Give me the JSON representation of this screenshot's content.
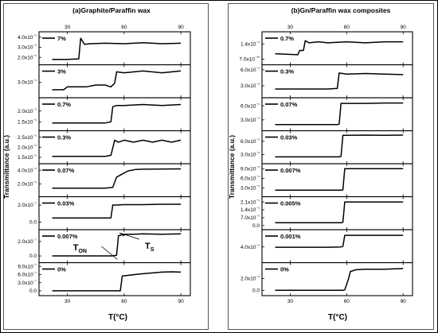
{
  "chart_data": [
    {
      "type": "line",
      "title": "(a)Graphite/Paraffin wax",
      "xlabel": "T(°C)",
      "ylabel": "Transmittance (a.u.)",
      "x_ticks": [
        "30",
        "60",
        "90"
      ],
      "xlim": [
        15,
        95
      ],
      "panels": [
        {
          "label": "7%",
          "y_ticks": [
            "4.0x10⁻⁶",
            "3.0x10⁻⁶",
            "2.0x10⁻⁶"
          ],
          "y_tick_values": [
            4.0,
            3.0,
            2.0
          ],
          "ylim": [
            1.5,
            4.3
          ],
          "x": [
            22,
            30,
            36,
            37,
            39,
            42,
            50,
            60,
            70,
            80,
            90
          ],
          "y": [
            1.8,
            1.8,
            1.85,
            3.9,
            3.3,
            3.35,
            3.4,
            3.35,
            3.45,
            3.35,
            3.4
          ]
        },
        {
          "label": "3%",
          "y_ticks": [
            "3.0x10⁻⁶"
          ],
          "y_tick_values": [
            3.0
          ],
          "ylim": [
            2.3,
            3.8
          ],
          "x": [
            22,
            28,
            30,
            40,
            45,
            50,
            53,
            55,
            56,
            60,
            70,
            80,
            90
          ],
          "y": [
            2.6,
            2.6,
            2.75,
            2.75,
            2.85,
            2.85,
            2.75,
            2.95,
            3.55,
            3.5,
            3.6,
            3.5,
            3.6
          ]
        },
        {
          "label": "0.7%",
          "y_ticks": [
            "2.0x10⁻⁶",
            "1.5x10⁻⁶"
          ],
          "y_tick_values": [
            2.0,
            1.5
          ],
          "ylim": [
            1.2,
            2.5
          ],
          "x": [
            22,
            50,
            53,
            54,
            56,
            60,
            70,
            80,
            90
          ],
          "y": [
            1.45,
            1.45,
            1.5,
            2.2,
            2.25,
            2.25,
            2.3,
            2.25,
            2.3
          ]
        },
        {
          "label": "0.3%",
          "y_ticks": [
            "2.5x10⁻⁶",
            "2.0x10⁻⁶",
            "1.5x10⁻⁶"
          ],
          "y_tick_values": [
            2.5,
            2.0,
            1.5
          ],
          "ylim": [
            1.3,
            2.7
          ],
          "x": [
            22,
            50,
            53,
            55,
            57,
            60,
            65,
            70,
            75,
            80,
            85,
            90
          ],
          "y": [
            1.55,
            1.55,
            1.6,
            2.35,
            2.25,
            2.35,
            2.25,
            2.35,
            2.25,
            2.35,
            2.25,
            2.35
          ]
        },
        {
          "label": "0.07%",
          "y_ticks": [
            "4.0x10⁻⁶",
            "2.0x10⁻⁶"
          ],
          "y_tick_values": [
            4.0,
            2.0
          ],
          "ylim": [
            0.5,
            4.6
          ],
          "x": [
            22,
            50,
            54,
            56,
            58,
            62,
            66,
            70,
            90
          ],
          "y": [
            1.4,
            1.4,
            1.5,
            3.0,
            3.3,
            3.9,
            4.1,
            4.15,
            4.2
          ]
        },
        {
          "label": "0.03%",
          "y_ticks": [
            "2.0x10⁻⁷",
            "0.0"
          ],
          "y_tick_values": [
            2.0,
            0.0
          ],
          "ylim": [
            -0.6,
            2.7
          ],
          "x": [
            22,
            53,
            54,
            56,
            60,
            70,
            80,
            90
          ],
          "y": [
            0.5,
            0.5,
            2.0,
            2.0,
            2.05,
            2.05,
            2.1,
            2.1
          ]
        },
        {
          "label": "0.007%",
          "y_ticks": [
            "2.0x10⁻⁷",
            "0.0"
          ],
          "y_tick_values": [
            2.0,
            0.0
          ],
          "ylim": [
            -0.6,
            3.3
          ],
          "x": [
            22,
            54,
            56,
            57,
            60,
            65,
            70,
            80,
            90
          ],
          "y": [
            0.0,
            0.0,
            0.1,
            2.8,
            3.0,
            3.0,
            3.05,
            3.0,
            3.05
          ]
        },
        {
          "label": "0%",
          "y_ticks": [
            "9.0x10⁻⁷",
            "6.0x10⁻⁷",
            "3.0x10⁻⁷",
            "0.0"
          ],
          "y_tick_values": [
            9.0,
            6.0,
            3.0,
            0.0
          ],
          "ylim": [
            -0.9,
            9.5
          ],
          "x": [
            22,
            58,
            59,
            62,
            66,
            70,
            75,
            80,
            85,
            90
          ],
          "y": [
            0.0,
            0.0,
            5.5,
            5.7,
            6.0,
            6.3,
            6.6,
            6.9,
            7.0,
            6.9
          ]
        }
      ],
      "annotations": [
        {
          "text": "T",
          "sub": "ON",
          "panel": "0.007%"
        },
        {
          "text": "T",
          "sub": "S",
          "panel": "0.007%"
        }
      ]
    },
    {
      "type": "line",
      "title": "(b)Gn/Paraffin wax composites",
      "xlabel": "T(°C)",
      "ylabel": "Transmittance (a.u.)",
      "x_ticks": [
        "30",
        "60",
        "90"
      ],
      "xlim": [
        15,
        95
      ],
      "panels": [
        {
          "label": "0.7%",
          "y_ticks": [
            "1.4x10⁻⁶",
            "7.0x10⁻¹⁰"
          ],
          "y_tick_values": [
            1.4,
            0.7
          ],
          "ylim": [
            0.55,
            1.85
          ],
          "x": [
            22,
            34,
            35,
            37,
            38,
            40,
            45,
            50,
            60,
            70,
            80,
            90
          ],
          "y": [
            0.95,
            0.9,
            1.1,
            1.1,
            1.55,
            1.45,
            1.5,
            1.45,
            1.5,
            1.45,
            1.5,
            1.5
          ]
        },
        {
          "label": "0.3%",
          "y_ticks": [
            "6.0x10⁻⁶",
            "3.0x10⁻⁶"
          ],
          "y_tick_values": [
            6.0,
            3.0
          ],
          "ylim": [
            1.2,
            6.5
          ],
          "x": [
            22,
            50,
            55,
            56,
            60,
            70,
            80,
            90
          ],
          "y": [
            2.4,
            2.4,
            2.5,
            5.4,
            5.2,
            5.3,
            5.2,
            5.1
          ]
        },
        {
          "label": "0.07%",
          "y_ticks": [
            "6.0x10⁻⁶",
            "3.0x10⁻⁶"
          ],
          "y_tick_values": [
            6.0,
            3.0
          ],
          "ylim": [
            1.2,
            7.2
          ],
          "x": [
            22,
            55,
            56,
            57,
            60,
            70,
            80,
            90
          ],
          "y": [
            2.0,
            2.0,
            2.1,
            6.5,
            6.5,
            6.5,
            6.6,
            6.6
          ]
        },
        {
          "label": "0.03%",
          "y_ticks": [
            "6.0x10⁻⁶",
            "3.0x10⁻⁶"
          ],
          "y_tick_values": [
            6.0,
            3.0
          ],
          "ylim": [
            1.5,
            7.8
          ],
          "x": [
            22,
            56,
            57,
            58,
            60,
            70,
            80,
            90
          ],
          "y": [
            2.5,
            2.5,
            2.6,
            7.3,
            7.3,
            7.35,
            7.3,
            7.35
          ]
        },
        {
          "label": "0.007%",
          "y_ticks": [
            "9.0x10⁻⁶",
            "6.0x10⁻⁶",
            "3.0x10⁻⁶"
          ],
          "y_tick_values": [
            9.0,
            6.0,
            3.0
          ],
          "ylim": [
            1.0,
            9.8
          ],
          "x": [
            22,
            57,
            58,
            59,
            60,
            70,
            80,
            90
          ],
          "y": [
            2.3,
            2.3,
            2.4,
            9.0,
            9.0,
            9.0,
            9.0,
            9.0
          ]
        },
        {
          "label": "0.005%",
          "y_ticks": [
            "2.1x10⁻⁵",
            "1.4x10⁻⁵",
            "7.0x10⁻⁶",
            "0.0"
          ],
          "y_tick_values": [
            2.1,
            1.4,
            0.7,
            0.0
          ],
          "ylim": [
            -0.15,
            2.35
          ],
          "x": [
            22,
            57,
            58,
            59,
            60,
            70,
            80,
            90
          ],
          "y": [
            0.25,
            0.25,
            0.3,
            2.1,
            2.1,
            2.1,
            2.1,
            2.1
          ]
        },
        {
          "label": "0.001%",
          "y_ticks": [
            "4.0x10⁻⁶"
          ],
          "y_tick_values": [
            4.0
          ],
          "ylim": [
            -0.5,
            9.0
          ],
          "x": [
            22,
            50,
            57,
            58,
            59,
            60,
            70,
            80,
            90
          ],
          "y": [
            3.9,
            3.9,
            4.0,
            4.2,
            7.9,
            7.9,
            7.9,
            7.9,
            7.9
          ]
        },
        {
          "label": "0%",
          "y_ticks": [
            "2.0x10⁻⁶",
            "0.0"
          ],
          "y_tick_values": [
            2.0,
            0.0
          ],
          "ylim": [
            -0.5,
            4.3
          ],
          "x": [
            22,
            58,
            59,
            60,
            61,
            62,
            65,
            70,
            80,
            90
          ],
          "y": [
            0.0,
            0.0,
            0.1,
            1.0,
            2.0,
            3.2,
            3.5,
            3.6,
            3.6,
            3.7
          ]
        }
      ]
    }
  ]
}
